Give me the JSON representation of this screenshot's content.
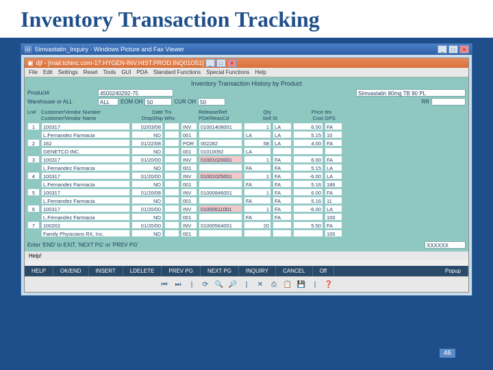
{
  "slide": {
    "title": "Inventory Transaction Tracking",
    "number": "46"
  },
  "outerWindow": {
    "title": "Simvastatin_Inquiry · Windows Picture and Fax Viewer"
  },
  "innerWindow": {
    "title": "djf - [mail.tchinc.com-17.HYGEN-INV.HIST.PROD.INQ01O51]",
    "menu": [
      "File",
      "Edit",
      "Settings",
      "Reset",
      "Tools",
      "GUI",
      "PDA",
      "Standard Functions",
      "Special Functions",
      "Help"
    ]
  },
  "screen": {
    "heading": "Inventory Transaction History by Product",
    "product": {
      "label": "Product#",
      "value": "4500240292-75",
      "desc": "Simvastatin 80mg TB 90 PL"
    },
    "warehouse": {
      "label": "Warehouse or ALL",
      "value": "ALL"
    },
    "eomoh": {
      "label": "EOM OH",
      "value": "50"
    },
    "curoh": {
      "label": "CUR OH",
      "value": "50"
    },
    "rr": {
      "label": "RR",
      "value": ""
    },
    "columns": {
      "ln": "Ln#",
      "custno": "Customer/Vendor Number",
      "custname": "Customer/Vendor Name",
      "date": "Date",
      "drop": "DropShip",
      "trx": "Trx",
      "whs": "Whs",
      "release": "Release/Ref",
      "po": "PO#/ReasCd",
      "qty": "Qty",
      "sell": "Sell",
      "st": "St",
      "price": "Price",
      "cost": "Cost",
      "itm": "Itm",
      "gps": "GPS"
    },
    "rows": [
      {
        "ln": "1",
        "no": "100317",
        "name": "L.Fernandez Farmacia",
        "date": "02/03/08",
        "drop": "ND",
        "trx": "INV",
        "whs": "001",
        "ref": "01001408001",
        "po": "",
        "qty": "1",
        "sell": "LA",
        "st": "LA",
        "price": "6.00",
        "cost": "5.15",
        "itm": "FA",
        "gps": "10"
      },
      {
        "ln": "2",
        "no": "162",
        "name": "GENETCO INC.",
        "date": "01/22/08",
        "drop": "ND",
        "trx": "POR",
        "whs": "001",
        "ref": "002282",
        "po": "01010092",
        "qty": "58",
        "sell": "LA",
        "st": "",
        "price": "4.00",
        "cost": "",
        "itm": "FA",
        "gps": ""
      },
      {
        "ln": "3",
        "no": "100317",
        "name": "L.Fernandez Farmacia",
        "date": "01/20/00",
        "drop": "ND",
        "trx": "INV",
        "whs": "001",
        "ref": "01001020001",
        "refPink": true,
        "po": "",
        "qty": "1",
        "sell": "FA",
        "st": "FA",
        "price": "6.00",
        "cost": "5.15",
        "itm": "FA",
        "gps": "LA"
      },
      {
        "ln": "4",
        "no": "100317",
        "name": "L.Fernandez Farmacia",
        "date": "01/20/00",
        "drop": "ND",
        "trx": "INV",
        "whs": "001",
        "ref": "01001025001",
        "refPink": true,
        "po": "",
        "qty": "1",
        "sell": "FA",
        "st": "FA",
        "price": "-6.00",
        "cost": "5.16",
        "itm": "LA",
        "gps": "186"
      },
      {
        "ln": "5",
        "no": "100317",
        "name": "L.Fernandez Farmacia",
        "date": "01/20/08",
        "drop": "ND",
        "trx": "INV",
        "whs": "001",
        "ref": "01000846001",
        "po": "",
        "qty": "1",
        "sell": "FA",
        "st": "FA",
        "price": "6.00",
        "cost": "5.16",
        "itm": "FA",
        "gps": "11"
      },
      {
        "ln": "6",
        "no": "100317",
        "name": "L.Fernandez Farmacia",
        "date": "01/20/00",
        "drop": "ND",
        "trx": "INV",
        "whs": "001",
        "ref": "01000611001",
        "refPink": true,
        "po": "",
        "qty": "1",
        "sell": "FA",
        "st": "FA",
        "price": "-6.00",
        "cost": "",
        "itm": "LA",
        "gps": "100"
      },
      {
        "ln": "7",
        "no": "100202",
        "name": "Family Physicians RX, Inc.",
        "date": "01/20/00",
        "drop": "ND",
        "trx": "INV",
        "whs": "001",
        "ref": "01000564001",
        "po": "",
        "qty": "20",
        "sell": "",
        "st": "",
        "price": "5.50",
        "cost": "",
        "itm": "FA",
        "gps": "100"
      }
    ],
    "prompt": "Enter 'END' to EXIT, 'NEXT PG' or 'PREV PG'",
    "promptValue": "XXXXXX"
  },
  "helpBar": {
    "label": "Help!",
    "items": [
      "HELP",
      "OK/END",
      "INSERT",
      "LDELETE",
      "PREV PG",
      "NEXT PG",
      "INQUIRY",
      "CANCEL",
      "Off",
      "Popup"
    ]
  },
  "bottomIcons": [
    "⏮",
    "⏭",
    "|",
    "⟳",
    "🔍",
    "🔎",
    "|",
    "✕",
    "⎙",
    "📋",
    "💾",
    "|",
    "❓"
  ]
}
